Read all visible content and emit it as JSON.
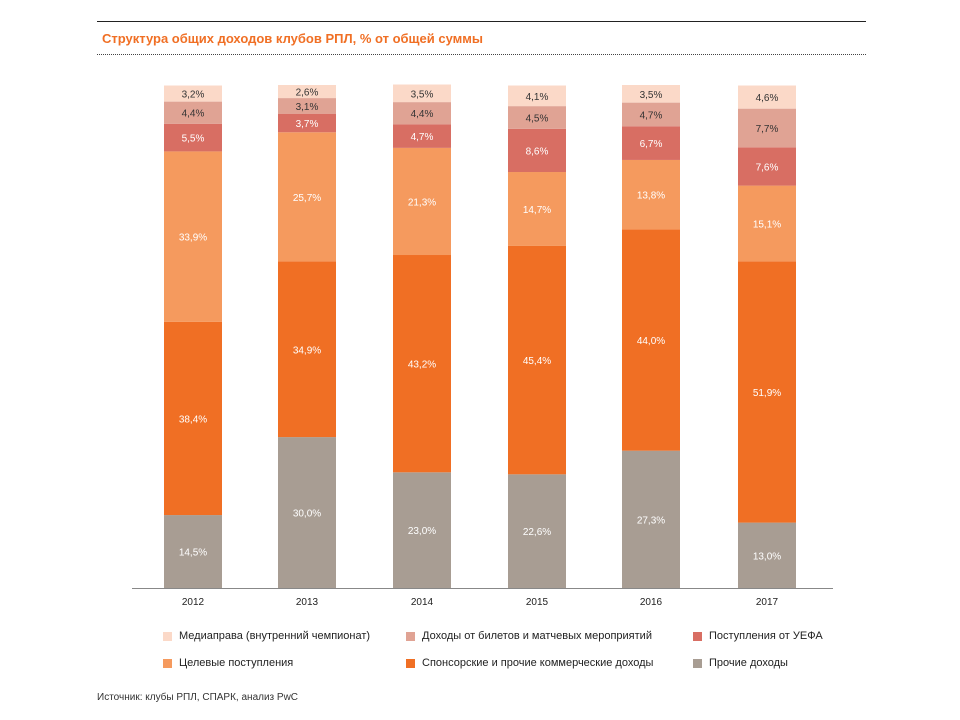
{
  "title": "Структура общих доходов клубов РПЛ, % от общей суммы",
  "source": "Источник: клубы РПЛ, СПАРК, анализ PwC",
  "chart_data": {
    "type": "bar",
    "stacked": true,
    "orientation": "vertical",
    "categories": [
      "2012",
      "2013",
      "2014",
      "2015",
      "2016",
      "2017"
    ],
    "series": [
      {
        "name": "Прочие доходы",
        "color": "#a89d93",
        "values": [
          14.5,
          30.0,
          23.0,
          22.6,
          27.3,
          13.0
        ],
        "labels": [
          "14,5%",
          "30,0%",
          "23,0%",
          "22,6%",
          "27,3%",
          "13,0%"
        ]
      },
      {
        "name": "Спонсорские и прочие коммерческие доходы",
        "color": "#f06f24",
        "values": [
          38.4,
          34.9,
          43.2,
          45.4,
          44.0,
          51.9
        ],
        "labels": [
          "38,4%",
          "34,9%",
          "43,2%",
          "45,4%",
          "44,0%",
          "51,9%"
        ]
      },
      {
        "name": "Целевые поступления",
        "color": "#f59a5e",
        "values": [
          33.9,
          25.7,
          21.3,
          14.7,
          13.8,
          15.1
        ],
        "labels": [
          "33,9%",
          "25,7%",
          "21,3%",
          "14,7%",
          "13,8%",
          "15,1%"
        ]
      },
      {
        "name": "Поступления от УЕФА",
        "color": "#d86e63",
        "values": [
          5.5,
          3.7,
          4.7,
          8.6,
          6.7,
          7.6
        ],
        "labels": [
          "5,5%",
          "3,7%",
          "4,7%",
          "8,6%",
          "6,7%",
          "7,6%"
        ]
      },
      {
        "name": "Доходы от билетов и матчевых мероприятий",
        "color": "#e0a394",
        "values": [
          4.4,
          3.1,
          4.4,
          4.5,
          4.7,
          7.7
        ],
        "labels": [
          "4,4%",
          "3,1%",
          "4,4%",
          "4,5%",
          "4,7%",
          "7,7%"
        ]
      },
      {
        "name": "Медиаправа (внутренний чемпионат)",
        "color": "#fbd9c8",
        "values": [
          3.2,
          2.6,
          3.5,
          4.1,
          3.5,
          4.6
        ],
        "labels": [
          "3,2%",
          "2,6%",
          "3,5%",
          "4,1%",
          "3,5%",
          "4,6%"
        ]
      }
    ],
    "legend_position": "bottom",
    "grid": false
  },
  "legend": [
    {
      "name": "Медиаправа (внутренний чемпионат)",
      "color": "#fbd9c8"
    },
    {
      "name": "Доходы от билетов и матчевых мероприятий",
      "color": "#e0a394"
    },
    {
      "name": "Поступления от УЕФА",
      "color": "#d86e63"
    },
    {
      "name": "Целевые поступления",
      "color": "#f59a5e"
    },
    {
      "name": "Спонсорские и прочие коммерческие доходы",
      "color": "#f06f24"
    },
    {
      "name": "Прочие доходы",
      "color": "#a89d93"
    }
  ]
}
